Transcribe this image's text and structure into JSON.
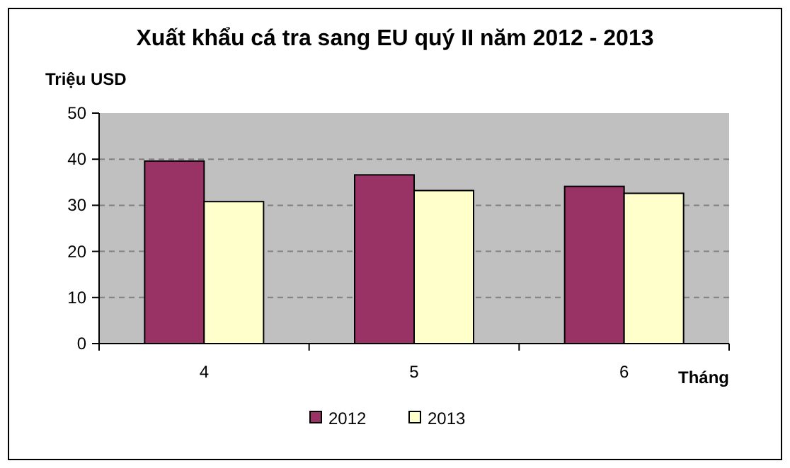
{
  "chart_data": {
    "type": "bar",
    "title": "Xuất khẩu cá tra sang EU quý II năm 2012 - 2013",
    "xlabel": "Tháng",
    "ylabel": "Triệu USD",
    "categories": [
      "4",
      "5",
      "6"
    ],
    "series": [
      {
        "name": "2012",
        "color": "#993366",
        "values": [
          39.6,
          36.6,
          34.1
        ]
      },
      {
        "name": "2013",
        "color": "#ffffcc",
        "values": [
          30.8,
          33.2,
          32.6
        ]
      }
    ],
    "ylim": [
      0,
      50
    ],
    "yticks": [
      0,
      10,
      20,
      30,
      40,
      50
    ],
    "grid": "y",
    "legend": "bottom"
  }
}
